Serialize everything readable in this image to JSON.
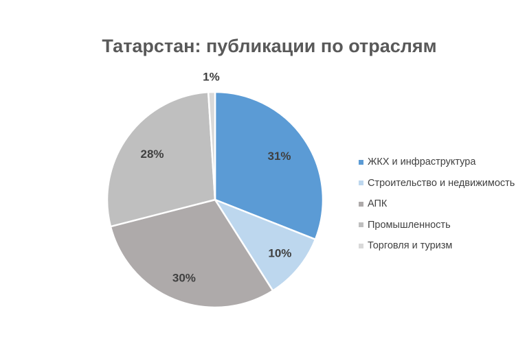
{
  "chart_data": {
    "type": "pie",
    "title": "Татарстан: публикации по отраслям",
    "legend_position": "right",
    "categories": [
      "ЖКХ и инфраструктура",
      "Строительство и недвижимость",
      "АПК",
      "Промышленность",
      "Торговля и туризм"
    ],
    "values": [
      31,
      10,
      30,
      28,
      1
    ],
    "labels": [
      "31%",
      "10%",
      "30%",
      "28%",
      "1%"
    ],
    "colors": [
      "#5B9BD5",
      "#BDD7EE",
      "#AEAAAA",
      "#BFBFBF",
      "#D9D9D9"
    ]
  }
}
